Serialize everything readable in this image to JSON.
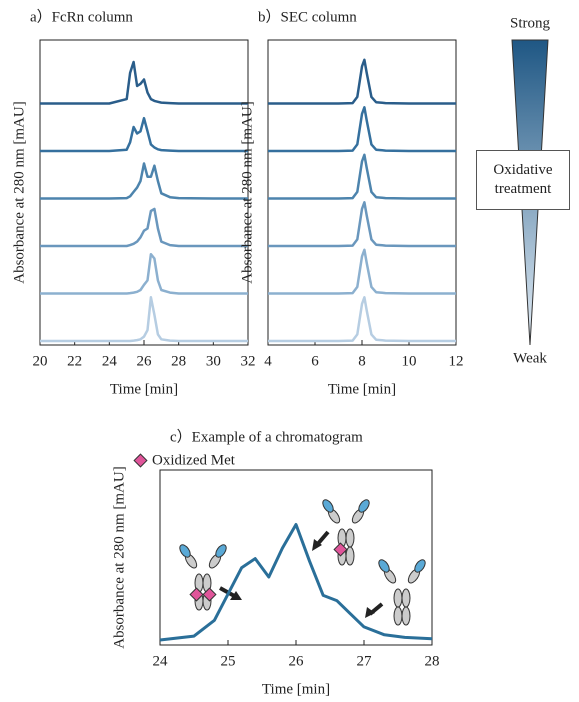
{
  "chart_data": [
    {
      "type": "line",
      "title": "a）FcRn column",
      "xlabel": "Time  [min]",
      "ylabel": "Absorbance at 280 nm [mAU]",
      "xlim": [
        20,
        32
      ],
      "xticks": [
        20,
        22,
        24,
        26,
        28,
        30,
        32
      ],
      "ylim": [
        0,
        100
      ],
      "x": [
        20,
        22,
        24,
        25,
        25.2,
        25.4,
        25.6,
        25.8,
        26,
        26.2,
        26.4,
        26.6,
        26.8,
        27,
        27.5,
        28,
        30,
        32
      ],
      "series": [
        {
          "color": "#2a5d8a",
          "values": [
            0,
            0,
            0,
            10,
            70,
            95,
            40,
            45,
            55,
            25,
            10,
            6,
            4,
            2,
            1,
            0,
            0,
            0
          ]
        },
        {
          "color": "#35709e",
          "values": [
            0,
            0,
            0,
            3,
            20,
            55,
            40,
            45,
            75,
            45,
            15,
            8,
            4,
            2,
            1,
            0,
            0,
            0
          ]
        },
        {
          "color": "#4d84ad",
          "values": [
            0,
            0,
            0,
            1,
            5,
            15,
            25,
            40,
            80,
            50,
            50,
            75,
            40,
            12,
            3,
            1,
            0,
            0
          ]
        },
        {
          "color": "#6a97bd",
          "values": [
            0,
            0,
            0,
            0,
            2,
            5,
            10,
            20,
            35,
            40,
            80,
            85,
            40,
            10,
            2,
            0,
            0,
            0
          ]
        },
        {
          "color": "#8cb0cf",
          "values": [
            0,
            0,
            0,
            0,
            1,
            2,
            4,
            8,
            20,
            30,
            90,
            80,
            30,
            8,
            2,
            0,
            0,
            0
          ]
        },
        {
          "color": "#b6cde2",
          "values": [
            0,
            0,
            0,
            0,
            0,
            1,
            2,
            4,
            10,
            25,
            100,
            60,
            15,
            4,
            1,
            0,
            0,
            0
          ]
        }
      ]
    },
    {
      "type": "line",
      "title": "b）SEC column",
      "xlabel": "Time  [min]",
      "ylabel": "Absorbance at 280 nm [mAU]",
      "xlim": [
        4,
        12
      ],
      "xticks": [
        4,
        6,
        8,
        10,
        12
      ],
      "ylim": [
        0,
        100
      ],
      "x": [
        4,
        6,
        7,
        7.6,
        7.8,
        8,
        8.1,
        8.2,
        8.4,
        8.6,
        9,
        10,
        12
      ],
      "series": [
        {
          "color": "#2a5d8a",
          "values": [
            0,
            0,
            0,
            1,
            15,
            85,
            100,
            70,
            15,
            3,
            1,
            0,
            0
          ]
        },
        {
          "color": "#35709e",
          "values": [
            0,
            0,
            0,
            1,
            15,
            85,
            100,
            70,
            15,
            3,
            1,
            0,
            0
          ]
        },
        {
          "color": "#4d84ad",
          "values": [
            0,
            0,
            0,
            1,
            15,
            85,
            100,
            70,
            15,
            3,
            1,
            0,
            0
          ]
        },
        {
          "color": "#6a97bd",
          "values": [
            0,
            0,
            0,
            1,
            15,
            85,
            100,
            70,
            15,
            3,
            1,
            0,
            0
          ]
        },
        {
          "color": "#8cb0cf",
          "values": [
            0,
            0,
            0,
            1,
            15,
            85,
            100,
            70,
            15,
            3,
            1,
            0,
            0
          ]
        },
        {
          "color": "#b6cde2",
          "values": [
            0,
            0,
            0,
            1,
            15,
            85,
            100,
            70,
            15,
            3,
            1,
            0,
            0
          ]
        }
      ]
    },
    {
      "type": "line",
      "title": "c）Example of a chromatogram",
      "annotation": "Oxidized Met",
      "xlabel": "Time  [min]",
      "ylabel": "Absorbance at 280 nm [mAU]",
      "xlim": [
        24,
        28
      ],
      "xticks": [
        24,
        25,
        26,
        27,
        28
      ],
      "ylim": [
        0,
        100
      ],
      "x": [
        24,
        24.5,
        24.8,
        25,
        25.2,
        25.4,
        25.6,
        25.8,
        26,
        26.2,
        26.4,
        26.6,
        26.8,
        27,
        27.3,
        27.6,
        28
      ],
      "series": [
        {
          "color": "#2a6f99",
          "values": [
            0,
            3,
            15,
            35,
            55,
            62,
            48,
            70,
            88,
            60,
            34,
            30,
            20,
            10,
            4,
            2,
            1
          ]
        }
      ]
    }
  ],
  "treatment": {
    "strong": "Strong",
    "weak": "Weak",
    "label": "Oxidative treatment"
  }
}
